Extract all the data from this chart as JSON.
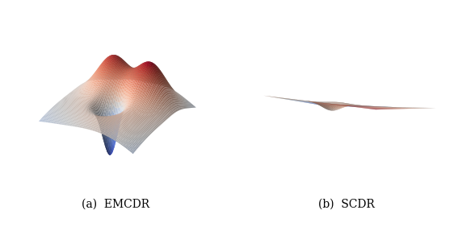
{
  "title_a": "(a)  EMCDR",
  "title_b": "(b)  SCDR",
  "colormap": "coolwarm",
  "figsize": [
    5.72,
    2.92
  ],
  "dpi": 100,
  "elev_a": 28,
  "azim_a": -55,
  "elev_b": 22,
  "azim_b": -50,
  "n_points": 80,
  "background_color": "white",
  "label_fontsize": 10,
  "label_fontfamily": "serif",
  "label_style": "normal"
}
